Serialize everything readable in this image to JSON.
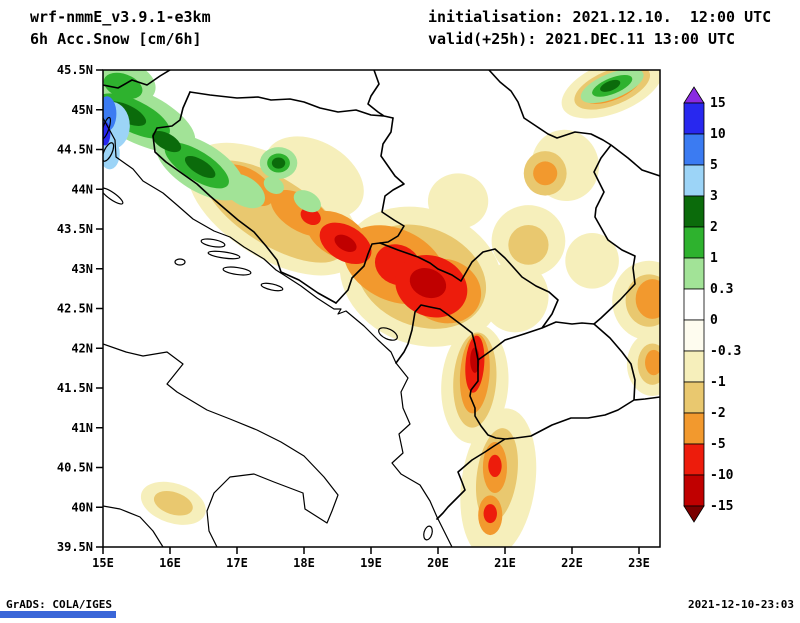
{
  "header": {
    "model_line": "wrf-nmmE_v3.9.1-e3km",
    "field_line": "6h Acc.Snow [cm/6h]",
    "init_line": "initialisation: 2021.12.10.  12:00 UTC",
    "valid_line": "valid(+25h): 2021.DEC.11 13:00 UTC"
  },
  "footer": {
    "left": "GrADS: COLA/IGES",
    "right": "2021-12-10-23:03"
  },
  "ui": {
    "bottom_bar_color": "#3a66d8"
  },
  "chart_data": {
    "type": "heatmap",
    "subtype": "filled-contour-weather-map",
    "title": "6h Acc.Snow [cm/6h]",
    "model": "wrf-nmmE_v3.9.1-e3km",
    "initialisation": "2021.12.10. 12:00 UTC",
    "valid": "(+25h) 2021.DEC.11 13:00 UTC",
    "region": "Adriatic / Western Balkans",
    "lon_range": [
      15,
      23.3
    ],
    "lat_range": [
      39.5,
      45.5
    ],
    "grid": false,
    "legend_position": "right-colorbar",
    "lon_ticks": [
      "15E",
      "16E",
      "17E",
      "18E",
      "19E",
      "20E",
      "21E",
      "22E",
      "23E"
    ],
    "lat_ticks": [
      "45.5N",
      "45N",
      "44.5N",
      "44N",
      "43.5N",
      "43N",
      "42.5N",
      "42N",
      "41.5N",
      "41N",
      "40.5N",
      "40N",
      "39.5N"
    ],
    "colorbar": {
      "tick_labels": [
        "15",
        "10",
        "5",
        "3",
        "2",
        "1",
        "0.3",
        "0",
        "-0.3",
        "-1",
        "-2",
        "-5",
        "-10",
        "-15"
      ],
      "colors": [
        "#8A2BE2",
        "#2828EF",
        "#3B7BF2",
        "#9CD4F7",
        "#0B6B0B",
        "#2EB22E",
        "#A2E397",
        "#FFFFFF",
        "#FEFCEF",
        "#F6EFBB",
        "#E9C86F",
        "#F2992E",
        "#ED1C0C",
        "#C00000",
        "#7A0000"
      ]
    },
    "snow_patches_format": "lon,lat,rx_deg,ry_deg,rot_deg,color_index (index into colorbar.colors)",
    "snow_patches": [
      [
        17.55,
        43.75,
        1.45,
        0.62,
        32,
        9
      ],
      [
        18.15,
        44.15,
        0.8,
        0.45,
        30,
        9
      ],
      [
        19.75,
        42.9,
        1.25,
        0.85,
        22,
        9
      ],
      [
        20.3,
        43.85,
        0.45,
        0.35,
        0,
        9
      ],
      [
        20.55,
        41.55,
        0.5,
        0.75,
        4,
        9
      ],
      [
        21.35,
        43.35,
        0.55,
        0.45,
        0,
        9
      ],
      [
        21.15,
        42.65,
        0.5,
        0.45,
        0,
        9
      ],
      [
        21.9,
        44.3,
        0.5,
        0.45,
        -15,
        9
      ],
      [
        22.3,
        43.1,
        0.4,
        0.35,
        0,
        9
      ],
      [
        22.6,
        45.28,
        0.8,
        0.32,
        -22,
        9
      ],
      [
        23.15,
        42.6,
        0.55,
        0.5,
        0,
        9
      ],
      [
        23.2,
        41.8,
        0.38,
        0.4,
        0,
        9
      ],
      [
        20.9,
        40.3,
        0.55,
        0.95,
        8,
        9
      ],
      [
        16.05,
        40.05,
        0.5,
        0.25,
        18,
        9
      ],
      [
        17.55,
        43.72,
        1.2,
        0.42,
        32,
        10
      ],
      [
        19.75,
        42.9,
        1.0,
        0.62,
        22,
        10
      ],
      [
        20.55,
        41.6,
        0.32,
        0.6,
        4,
        10
      ],
      [
        22.6,
        45.28,
        0.6,
        0.22,
        -22,
        10
      ],
      [
        20.88,
        40.4,
        0.3,
        0.6,
        8,
        10
      ],
      [
        21.6,
        44.2,
        0.32,
        0.28,
        0,
        10
      ],
      [
        21.35,
        43.3,
        0.3,
        0.25,
        0,
        10
      ],
      [
        23.15,
        42.6,
        0.35,
        0.33,
        0,
        10
      ],
      [
        23.2,
        41.8,
        0.22,
        0.26,
        0,
        10
      ],
      [
        16.05,
        40.05,
        0.3,
        0.14,
        18,
        10
      ],
      [
        17.15,
        44.05,
        0.45,
        0.2,
        32,
        11
      ],
      [
        17.95,
        43.7,
        0.5,
        0.22,
        32,
        11
      ],
      [
        18.5,
        43.42,
        0.5,
        0.26,
        30,
        11
      ],
      [
        19.35,
        43.05,
        0.8,
        0.45,
        25,
        11
      ],
      [
        20.1,
        42.72,
        0.55,
        0.4,
        18,
        11
      ],
      [
        20.55,
        41.68,
        0.22,
        0.5,
        4,
        11
      ],
      [
        22.6,
        45.28,
        0.45,
        0.16,
        -22,
        11
      ],
      [
        20.85,
        40.5,
        0.18,
        0.32,
        0,
        11
      ],
      [
        20.78,
        39.9,
        0.18,
        0.25,
        0,
        11
      ],
      [
        23.2,
        42.62,
        0.25,
        0.25,
        0,
        11
      ],
      [
        21.6,
        44.2,
        0.18,
        0.15,
        0,
        11
      ],
      [
        23.22,
        41.82,
        0.13,
        0.16,
        0,
        11
      ],
      [
        18.62,
        43.32,
        0.42,
        0.22,
        30,
        12
      ],
      [
        19.4,
        43.05,
        0.35,
        0.25,
        25,
        12
      ],
      [
        19.9,
        42.78,
        0.55,
        0.38,
        22,
        12
      ],
      [
        20.55,
        41.8,
        0.14,
        0.36,
        4,
        12
      ],
      [
        20.85,
        40.52,
        0.1,
        0.14,
        0,
        12
      ],
      [
        20.78,
        39.92,
        0.1,
        0.12,
        0,
        12
      ],
      [
        18.1,
        43.66,
        0.16,
        0.1,
        30,
        12
      ],
      [
        19.85,
        42.82,
        0.28,
        0.18,
        22,
        13
      ],
      [
        18.62,
        43.32,
        0.18,
        0.09,
        30,
        13
      ],
      [
        20.55,
        41.85,
        0.07,
        0.16,
        0,
        13
      ],
      [
        15.55,
        44.9,
        0.9,
        0.32,
        26,
        6
      ],
      [
        16.45,
        44.28,
        0.75,
        0.3,
        32,
        6
      ],
      [
        17.1,
        43.98,
        0.35,
        0.18,
        32,
        6
      ],
      [
        15.35,
        45.35,
        0.45,
        0.25,
        20,
        6
      ],
      [
        17.62,
        44.33,
        0.28,
        0.2,
        0,
        6
      ],
      [
        18.05,
        43.85,
        0.22,
        0.12,
        30,
        6
      ],
      [
        17.55,
        44.05,
        0.16,
        0.1,
        30,
        6
      ],
      [
        22.6,
        45.3,
        0.5,
        0.16,
        -22,
        6
      ],
      [
        15.45,
        44.92,
        0.6,
        0.2,
        26,
        5
      ],
      [
        16.4,
        44.3,
        0.55,
        0.18,
        32,
        5
      ],
      [
        17.62,
        44.33,
        0.17,
        0.12,
        0,
        5
      ],
      [
        15.3,
        45.3,
        0.3,
        0.15,
        20,
        5
      ],
      [
        22.6,
        45.3,
        0.32,
        0.1,
        -22,
        5
      ],
      [
        15.35,
        44.95,
        0.32,
        0.11,
        26,
        4
      ],
      [
        15.95,
        44.6,
        0.24,
        0.1,
        30,
        4
      ],
      [
        16.45,
        44.28,
        0.26,
        0.09,
        32,
        4
      ],
      [
        17.62,
        44.33,
        0.1,
        0.07,
        0,
        4
      ],
      [
        22.57,
        45.3,
        0.16,
        0.06,
        -22,
        4
      ],
      [
        15.12,
        44.8,
        0.28,
        0.3,
        0,
        3
      ],
      [
        15.1,
        44.45,
        0.15,
        0.2,
        0,
        3
      ],
      [
        15.06,
        44.95,
        0.14,
        0.22,
        0,
        2
      ],
      [
        15.03,
        44.7,
        0.08,
        0.15,
        0,
        1
      ]
    ]
  }
}
